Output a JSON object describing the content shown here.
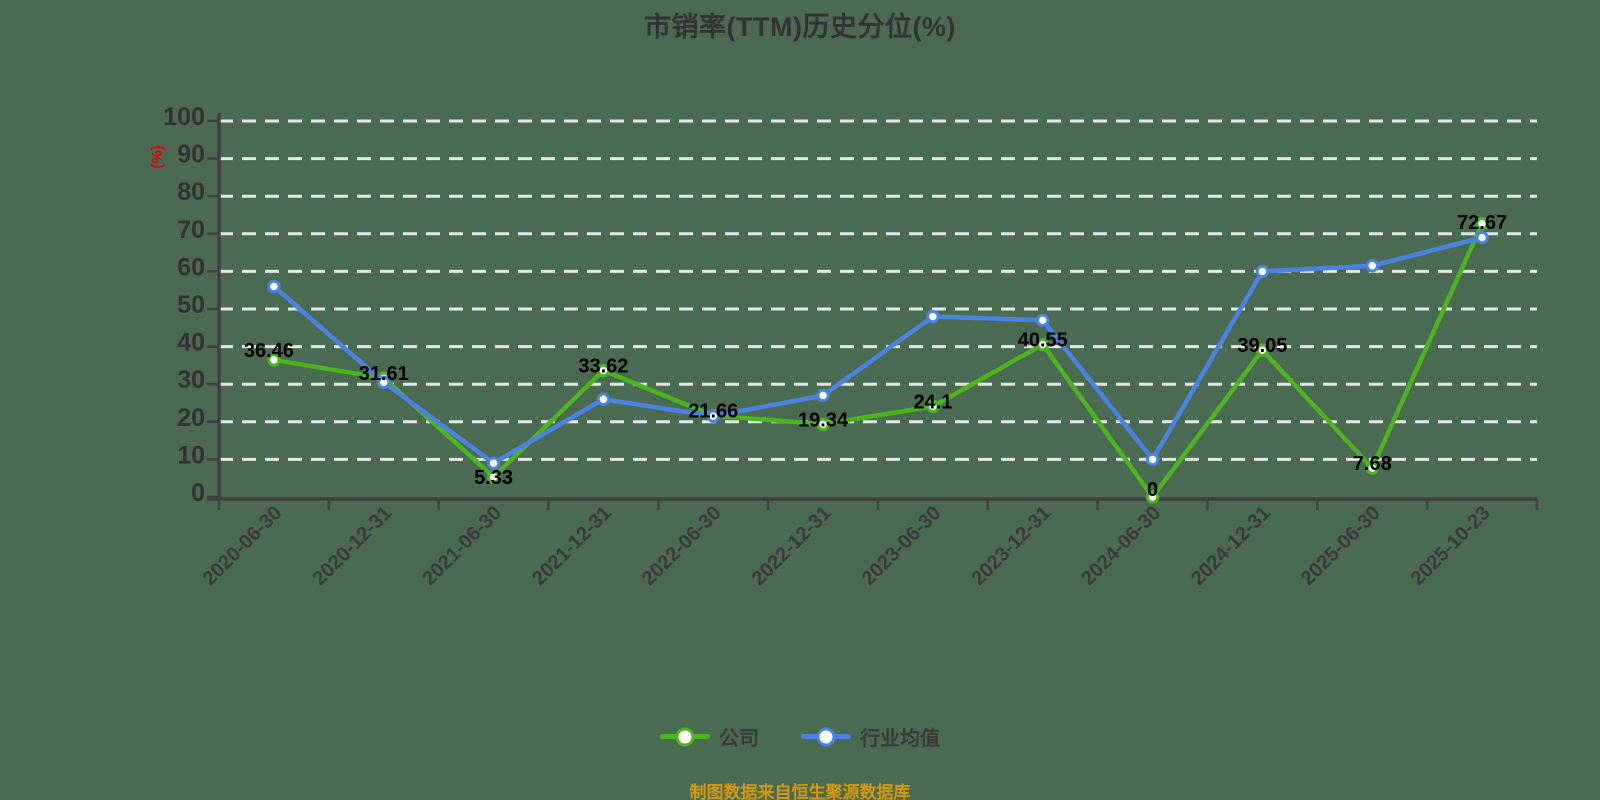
{
  "title": "市销率(TTM)历史分位(%)",
  "y_axis_unit": "(%)",
  "caption": "制图数据来自恒生聚源数据库",
  "colors": {
    "background": "#4a6b52",
    "grid": "rgba(255,255,255,0.85)",
    "axis": "#3f413f",
    "tick_text": "#323232",
    "x_tick_text": "#3a3a3a",
    "data_label": "#000000",
    "y_unit_red": "#e60000",
    "caption_orange": "#d7990f",
    "legend_text": "#3a3a3a",
    "marker_fill": "#ffffff"
  },
  "chart_data": {
    "type": "line",
    "title": "市销率(TTM)历史分位(%)",
    "ylabel": "(%)",
    "categories": [
      "2020-06-30",
      "2020-12-31",
      "2021-06-30",
      "2021-12-31",
      "2022-06-30",
      "2022-12-31",
      "2023-06-30",
      "2023-12-31",
      "2024-06-30",
      "2024-12-31",
      "2025-06-30",
      "2025-10-23"
    ],
    "series": [
      {
        "name": "公司",
        "color": "#4cb41e",
        "values": [
          36.46,
          31.61,
          5.33,
          33.62,
          21.66,
          19.34,
          24.1,
          40.55,
          0,
          39.05,
          7.68,
          72.67
        ],
        "labels_visible": true
      },
      {
        "name": "行业均值",
        "color": "#4a83e4",
        "values": [
          56,
          30.5,
          9,
          26,
          21.5,
          27,
          48,
          47,
          10,
          60,
          61.5,
          69
        ],
        "labels_visible": false
      }
    ],
    "ylim": [
      0,
      100
    ],
    "y_tick_step": 10,
    "grid": "horizontal-dashed-white",
    "legend_position": "bottom",
    "marker": "circle-white-fill"
  }
}
